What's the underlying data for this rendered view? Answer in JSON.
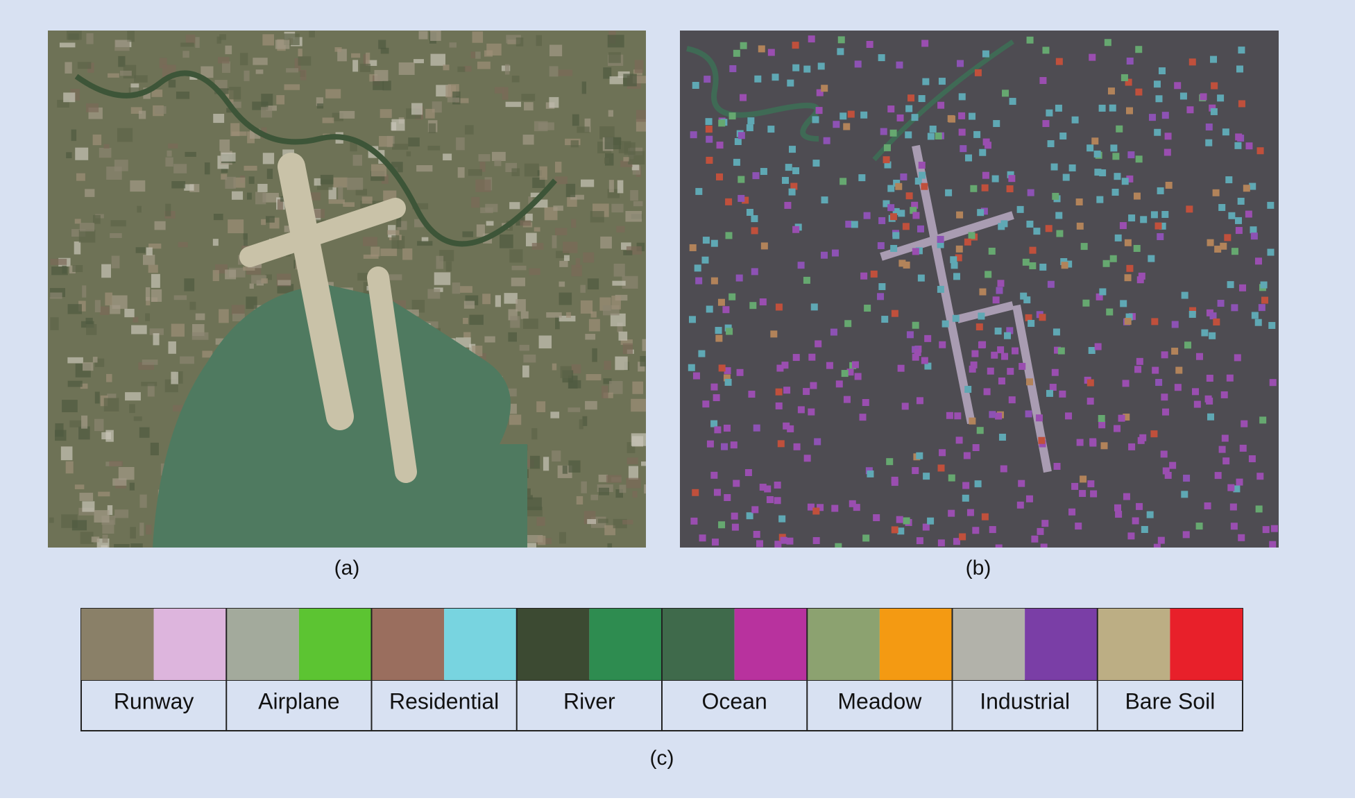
{
  "panels": [
    {
      "caption": "(a)"
    },
    {
      "caption": "(b)"
    }
  ],
  "legend": {
    "caption": "(c)",
    "classes": [
      {
        "name": "Runway",
        "color": "#ddb5dd",
        "texture": "#8a8068"
      },
      {
        "name": "Airplane",
        "color": "#5cc432",
        "texture": "#a3aa9c"
      },
      {
        "name": "Residential",
        "color": "#78d4e0",
        "texture": "#9a6e5e"
      },
      {
        "name": "River",
        "color": "#2e8c50",
        "texture": "#3c4a32"
      },
      {
        "name": "Ocean",
        "color": "#b8329e",
        "texture": "#3f6a4b"
      },
      {
        "name": "Meadow",
        "color": "#f49a12",
        "texture": "#8ca270"
      },
      {
        "name": "Industrial",
        "color": "#7a3ea6",
        "texture": "#b2b2aa"
      },
      {
        "name": "Bare Soil",
        "color": "#e8202a",
        "texture": "#bcae84"
      }
    ]
  }
}
